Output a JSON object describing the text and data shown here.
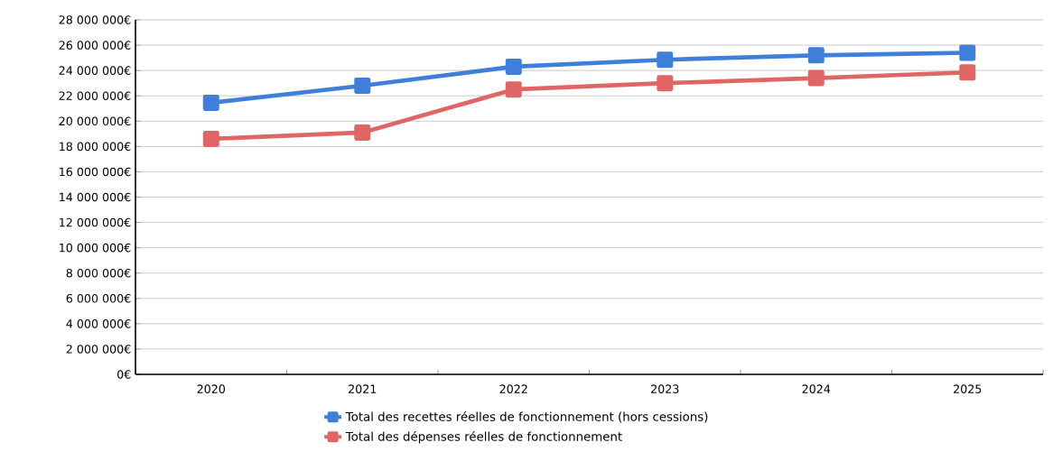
{
  "chart_data": {
    "type": "line",
    "categories": [
      "2020",
      "2021",
      "2022",
      "2023",
      "2024",
      "2025"
    ],
    "series": [
      {
        "name": "Total des recettes réelles de fonctionnement (hors cessions)",
        "color": "#3f7fd9",
        "values": [
          21450000,
          22800000,
          24300000,
          24850000,
          25200000,
          25400000
        ]
      },
      {
        "name": "Total des dépenses réelles de fonctionnement",
        "color": "#e06666",
        "values": [
          18600000,
          19100000,
          22500000,
          23000000,
          23400000,
          23850000
        ]
      }
    ],
    "ylim": [
      0,
      28000000
    ],
    "yticks": [
      {
        "value": 0,
        "label": "0€"
      },
      {
        "value": 2000000,
        "label": "2 000 000€"
      },
      {
        "value": 4000000,
        "label": "4 000 000€"
      },
      {
        "value": 6000000,
        "label": "6 000 000€"
      },
      {
        "value": 8000000,
        "label": "8 000 000€"
      },
      {
        "value": 10000000,
        "label": "10 000 000€"
      },
      {
        "value": 12000000,
        "label": "12 000 000€"
      },
      {
        "value": 14000000,
        "label": "14 000 000€"
      },
      {
        "value": 16000000,
        "label": "16 000 000€"
      },
      {
        "value": 18000000,
        "label": "18 000 000€"
      },
      {
        "value": 20000000,
        "label": "20 000 000€"
      },
      {
        "value": 22000000,
        "label": "22 000 000€"
      },
      {
        "value": 24000000,
        "label": "24 000 000€"
      },
      {
        "value": 26000000,
        "label": "26 000 000€"
      },
      {
        "value": 28000000,
        "label": "28 000 000€"
      }
    ],
    "grid": "y",
    "legend": "bottom",
    "marker": "square",
    "line_style": "solid"
  }
}
